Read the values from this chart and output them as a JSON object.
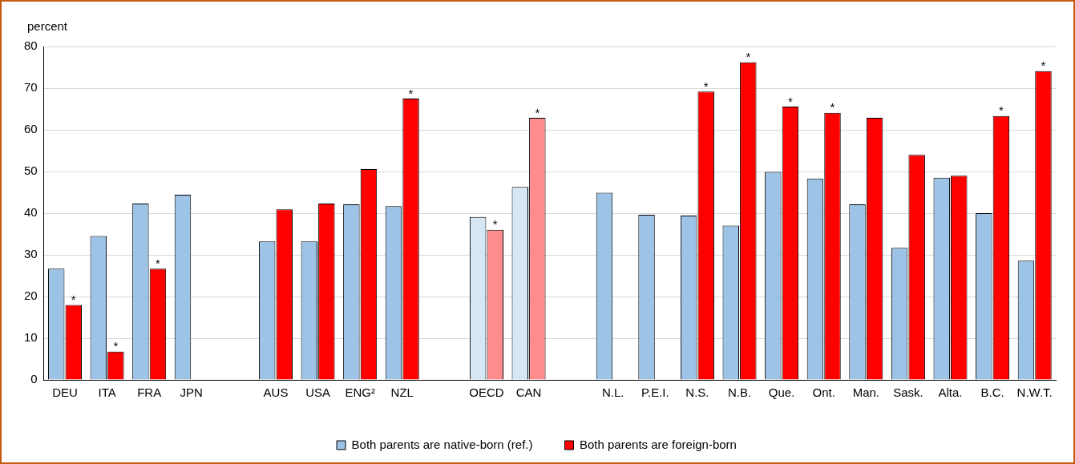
{
  "chart_data": {
    "type": "bar",
    "ylabel": "percent",
    "categories": [
      "DEU",
      "ITA",
      "FRA",
      "JPN",
      null,
      "AUS",
      "USA",
      "ENG²",
      "NZL",
      null,
      "OECD",
      "CAN",
      null,
      "N.L.",
      "P.E.I.",
      "N.S.",
      "N.B.",
      "Que.",
      "Ont.",
      "Man.",
      "Sask.",
      "Alta.",
      "B.C.",
      "N.W.T."
    ],
    "series": [
      {
        "name": "Both parents are native-born (ref.)",
        "color": "#9dc3e6",
        "colors": [
          "#9dc3e6",
          "#9dc3e6",
          "#9dc3e6",
          "#9dc3e6",
          "#9dc3e6",
          "#9dc3e6",
          "#9dc3e6",
          "#9dc3e6",
          "#9dc3e6",
          "#9dc3e6",
          "#d5e6f5",
          "#d5e6f5",
          "#9dc3e6",
          "#9dc3e6",
          "#9dc3e6",
          "#9dc3e6",
          "#9dc3e6",
          "#9dc3e6",
          "#9dc3e6",
          "#9dc3e6",
          "#9dc3e6",
          "#9dc3e6",
          "#9dc3e6",
          "#9dc3e6"
        ],
        "values": [
          26.7,
          34.5,
          42.3,
          44.4,
          null,
          33.2,
          33.2,
          42.1,
          41.7,
          null,
          39.1,
          46.3,
          null,
          44.9,
          39.6,
          39.4,
          37.0,
          49.9,
          48.3,
          42.1,
          31.7,
          48.5,
          40.0,
          28.6
        ]
      },
      {
        "name": "Both parents are foreign-born",
        "color": "#ff0000",
        "colors": [
          "#ff0000",
          "#ff0000",
          "#ff0000",
          "#ff0000",
          "#ff0000",
          "#ff0000",
          "#ff0000",
          "#ff0000",
          "#ff0000",
          "#ff0000",
          "#ff8c8c",
          "#ff8c8c",
          "#ff0000",
          "#ff0000",
          "#ff0000",
          "#ff0000",
          "#ff0000",
          "#ff0000",
          "#ff0000",
          "#ff0000",
          "#ff0000",
          "#ff0000",
          "#ff0000",
          "#ff0000"
        ],
        "values": [
          18.0,
          6.8,
          26.7,
          null,
          null,
          40.9,
          42.3,
          50.6,
          67.5,
          null,
          36.0,
          62.9,
          null,
          null,
          null,
          69.2,
          76.2,
          65.6,
          64.1,
          62.9,
          54.0,
          49.0,
          63.3,
          74.1
        ],
        "value_labels": [
          "*",
          "*",
          "*",
          null,
          null,
          null,
          null,
          null,
          "*",
          null,
          "*",
          "*",
          null,
          null,
          null,
          "*",
          "*",
          "*",
          "*",
          null,
          null,
          null,
          "*",
          "*"
        ]
      }
    ],
    "ylim": [
      0,
      80
    ],
    "yticks": [
      0,
      10,
      20,
      30,
      40,
      50,
      60,
      70,
      80
    ],
    "grid": "y",
    "legend": "bottom"
  }
}
